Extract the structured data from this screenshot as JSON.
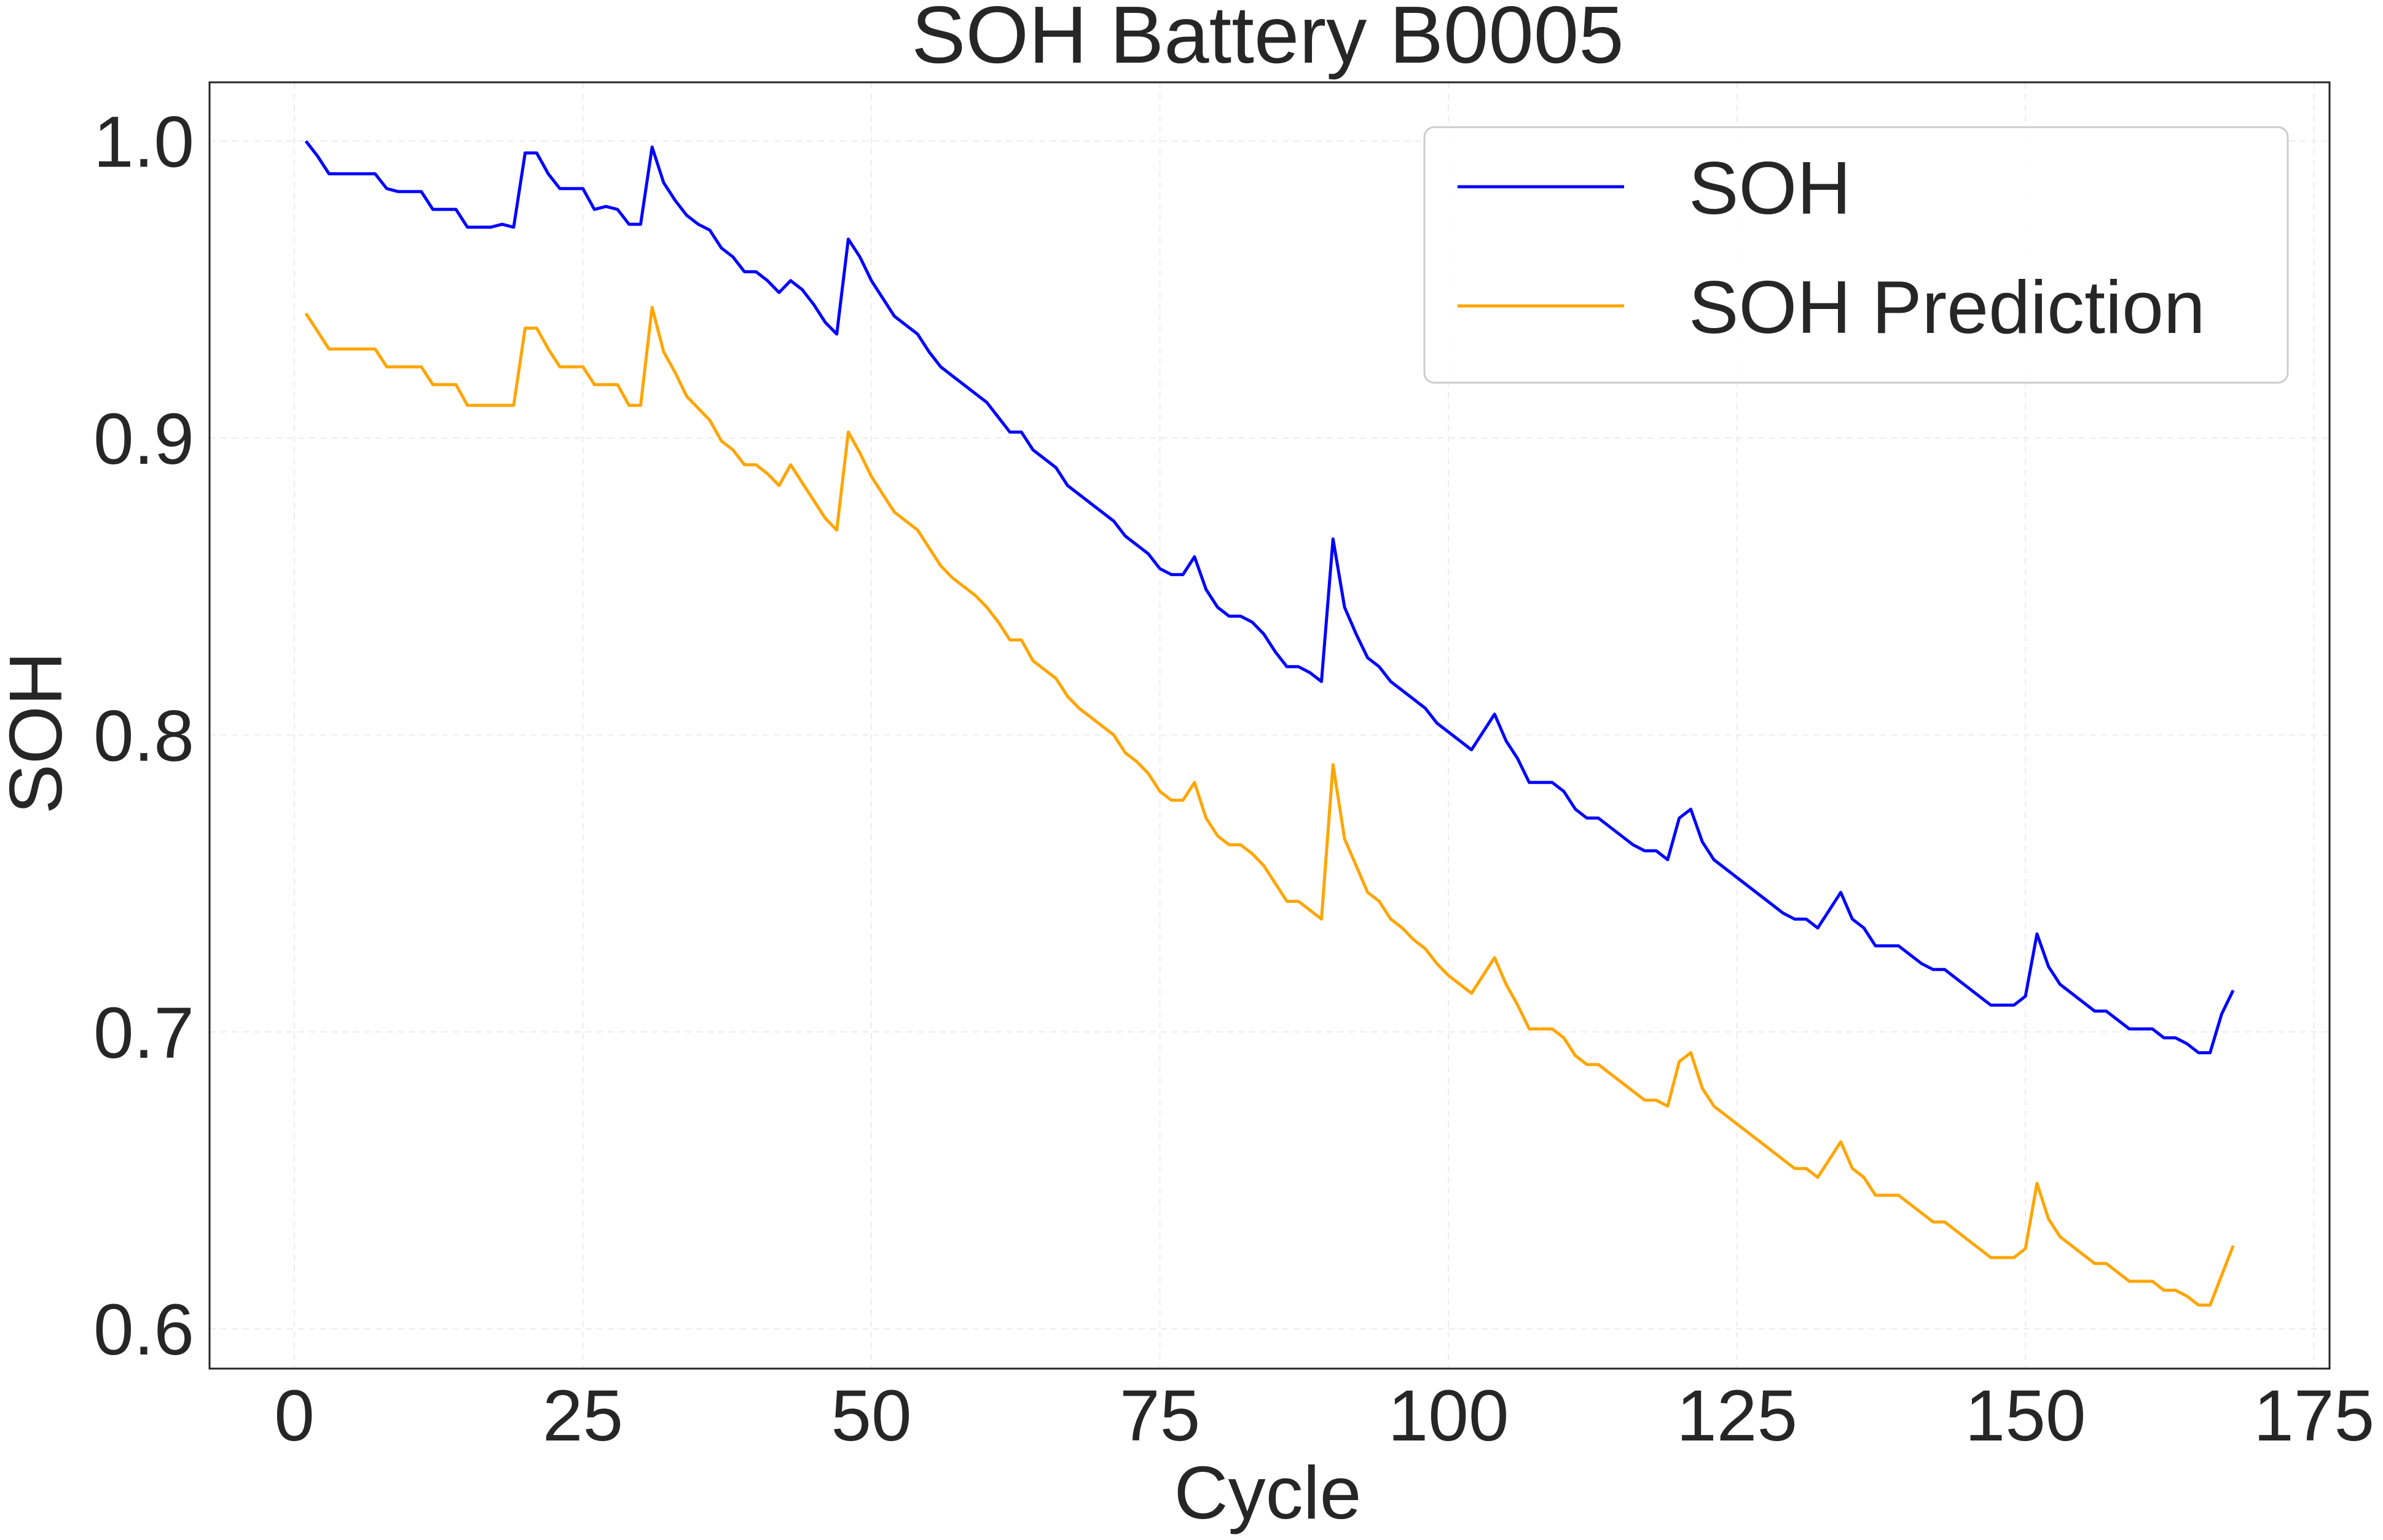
{
  "chart_data": {
    "type": "line",
    "title": "SOH Battery B0005",
    "xlabel": "Cycle",
    "ylabel": "SOH",
    "xlim": [
      -7.35,
      176.35
    ],
    "ylim": [
      0.5866,
      1.0198
    ],
    "xticks": [
      0,
      25,
      50,
      75,
      100,
      125,
      150,
      175
    ],
    "yticks": [
      0.6,
      0.7,
      0.8,
      0.9,
      1.0
    ],
    "xtick_labels": [
      "0",
      "25",
      "50",
      "75",
      "100",
      "125",
      "150",
      "175"
    ],
    "ytick_labels": [
      "0.6",
      "0.7",
      "0.8",
      "0.9",
      "1.0"
    ],
    "grid": true,
    "legend_position": "top-right",
    "series": [
      {
        "name": "SOH",
        "color": "#0000ff",
        "x": [
          1,
          2,
          3,
          4,
          5,
          6,
          7,
          8,
          9,
          10,
          11,
          12,
          13,
          14,
          15,
          16,
          17,
          18,
          19,
          20,
          21,
          22,
          23,
          24,
          25,
          26,
          27,
          28,
          29,
          30,
          31,
          32,
          33,
          34,
          35,
          36,
          37,
          38,
          39,
          40,
          41,
          42,
          43,
          44,
          45,
          46,
          47,
          48,
          49,
          50,
          51,
          52,
          53,
          54,
          55,
          56,
          57,
          58,
          59,
          60,
          61,
          62,
          63,
          64,
          65,
          66,
          67,
          68,
          69,
          70,
          71,
          72,
          73,
          74,
          75,
          76,
          77,
          78,
          79,
          80,
          81,
          82,
          83,
          84,
          85,
          86,
          87,
          88,
          89,
          90,
          91,
          92,
          93,
          94,
          95,
          96,
          97,
          98,
          99,
          100,
          101,
          102,
          103,
          104,
          105,
          106,
          107,
          108,
          109,
          110,
          111,
          112,
          113,
          114,
          115,
          116,
          117,
          118,
          119,
          120,
          121,
          122,
          123,
          124,
          125,
          126,
          127,
          128,
          129,
          130,
          131,
          132,
          133,
          134,
          135,
          136,
          137,
          138,
          139,
          140,
          141,
          142,
          143,
          144,
          145,
          146,
          147,
          148,
          149,
          150,
          151,
          152,
          153,
          154,
          155,
          156,
          157,
          158,
          159,
          160,
          161,
          162,
          163,
          164,
          165,
          166,
          167,
          168
        ],
        "values": [
          1.0,
          0.995,
          0.989,
          0.989,
          0.989,
          0.989,
          0.989,
          0.984,
          0.983,
          0.983,
          0.983,
          0.977,
          0.977,
          0.977,
          0.971,
          0.971,
          0.971,
          0.972,
          0.971,
          0.996,
          0.996,
          0.989,
          0.984,
          0.984,
          0.984,
          0.977,
          0.978,
          0.977,
          0.972,
          0.972,
          0.998,
          0.986,
          0.98,
          0.975,
          0.972,
          0.97,
          0.964,
          0.961,
          0.956,
          0.956,
          0.953,
          0.949,
          0.953,
          0.95,
          0.945,
          0.939,
          0.935,
          0.967,
          0.961,
          0.953,
          0.947,
          0.941,
          0.938,
          0.935,
          0.929,
          0.924,
          0.921,
          0.918,
          0.915,
          0.912,
          0.907,
          0.902,
          0.902,
          0.896,
          0.893,
          0.89,
          0.884,
          0.881,
          0.878,
          0.875,
          0.872,
          0.867,
          0.864,
          0.861,
          0.856,
          0.854,
          0.854,
          0.86,
          0.849,
          0.843,
          0.84,
          0.84,
          0.838,
          0.834,
          0.828,
          0.823,
          0.823,
          0.821,
          0.818,
          0.866,
          0.843,
          0.834,
          0.826,
          0.823,
          0.818,
          0.815,
          0.812,
          0.809,
          0.804,
          0.801,
          0.798,
          0.795,
          0.801,
          0.807,
          0.798,
          0.792,
          0.784,
          0.784,
          0.784,
          0.781,
          0.775,
          0.772,
          0.772,
          0.769,
          0.766,
          0.763,
          0.761,
          0.761,
          0.758,
          0.772,
          0.775,
          0.764,
          0.758,
          0.755,
          0.752,
          0.749,
          0.746,
          0.743,
          0.74,
          0.738,
          0.738,
          0.735,
          0.741,
          0.747,
          0.738,
          0.735,
          0.729,
          0.729,
          0.729,
          0.726,
          0.723,
          0.721,
          0.721,
          0.718,
          0.715,
          0.712,
          0.709,
          0.709,
          0.709,
          0.712,
          0.733,
          0.722,
          0.716,
          0.713,
          0.71,
          0.707,
          0.707,
          0.704,
          0.701,
          0.701,
          0.701,
          0.698,
          0.698,
          0.696,
          0.693,
          0.693,
          0.706,
          0.714
        ]
      },
      {
        "name": "SOH Prediction",
        "color": "#ffa500",
        "x": [
          1,
          2,
          3,
          4,
          5,
          6,
          7,
          8,
          9,
          10,
          11,
          12,
          13,
          14,
          15,
          16,
          17,
          18,
          19,
          20,
          21,
          22,
          23,
          24,
          25,
          26,
          27,
          28,
          29,
          30,
          31,
          32,
          33,
          34,
          35,
          36,
          37,
          38,
          39,
          40,
          41,
          42,
          43,
          44,
          45,
          46,
          47,
          48,
          49,
          50,
          51,
          52,
          53,
          54,
          55,
          56,
          57,
          58,
          59,
          60,
          61,
          62,
          63,
          64,
          65,
          66,
          67,
          68,
          69,
          70,
          71,
          72,
          73,
          74,
          75,
          76,
          77,
          78,
          79,
          80,
          81,
          82,
          83,
          84,
          85,
          86,
          87,
          88,
          89,
          90,
          91,
          92,
          93,
          94,
          95,
          96,
          97,
          98,
          99,
          100,
          101,
          102,
          103,
          104,
          105,
          106,
          107,
          108,
          109,
          110,
          111,
          112,
          113,
          114,
          115,
          116,
          117,
          118,
          119,
          120,
          121,
          122,
          123,
          124,
          125,
          126,
          127,
          128,
          129,
          130,
          131,
          132,
          133,
          134,
          135,
          136,
          137,
          138,
          139,
          140,
          141,
          142,
          143,
          144,
          145,
          146,
          147,
          148,
          149,
          150,
          151,
          152,
          153,
          154,
          155,
          156,
          157,
          158,
          159,
          160,
          161,
          162,
          163,
          164,
          165,
          166,
          167,
          168
        ],
        "values": [
          0.942,
          0.936,
          0.93,
          0.93,
          0.93,
          0.93,
          0.93,
          0.924,
          0.924,
          0.924,
          0.924,
          0.918,
          0.918,
          0.918,
          0.911,
          0.911,
          0.911,
          0.911,
          0.911,
          0.937,
          0.937,
          0.93,
          0.924,
          0.924,
          0.924,
          0.918,
          0.918,
          0.918,
          0.911,
          0.911,
          0.944,
          0.929,
          0.922,
          0.914,
          0.91,
          0.906,
          0.899,
          0.896,
          0.891,
          0.891,
          0.888,
          0.884,
          0.891,
          0.885,
          0.879,
          0.873,
          0.869,
          0.902,
          0.895,
          0.887,
          0.881,
          0.875,
          0.872,
          0.869,
          0.863,
          0.857,
          0.853,
          0.85,
          0.847,
          0.843,
          0.838,
          0.832,
          0.832,
          0.825,
          0.822,
          0.819,
          0.813,
          0.809,
          0.806,
          0.803,
          0.8,
          0.794,
          0.791,
          0.787,
          0.781,
          0.778,
          0.778,
          0.784,
          0.772,
          0.766,
          0.763,
          0.763,
          0.76,
          0.756,
          0.75,
          0.744,
          0.744,
          0.741,
          0.738,
          0.79,
          0.765,
          0.756,
          0.747,
          0.744,
          0.738,
          0.735,
          0.731,
          0.728,
          0.723,
          0.719,
          0.716,
          0.713,
          0.719,
          0.725,
          0.716,
          0.709,
          0.701,
          0.701,
          0.701,
          0.698,
          0.692,
          0.689,
          0.689,
          0.686,
          0.683,
          0.68,
          0.677,
          0.677,
          0.675,
          0.69,
          0.693,
          0.681,
          0.675,
          0.672,
          0.669,
          0.666,
          0.663,
          0.66,
          0.657,
          0.654,
          0.654,
          0.651,
          0.657,
          0.663,
          0.654,
          0.651,
          0.645,
          0.645,
          0.645,
          0.642,
          0.639,
          0.636,
          0.636,
          0.633,
          0.63,
          0.627,
          0.624,
          0.624,
          0.624,
          0.627,
          0.649,
          0.637,
          0.631,
          0.628,
          0.625,
          0.622,
          0.622,
          0.619,
          0.616,
          0.616,
          0.616,
          0.613,
          0.613,
          0.611,
          0.608,
          0.608,
          0.618,
          0.628
        ]
      }
    ]
  }
}
